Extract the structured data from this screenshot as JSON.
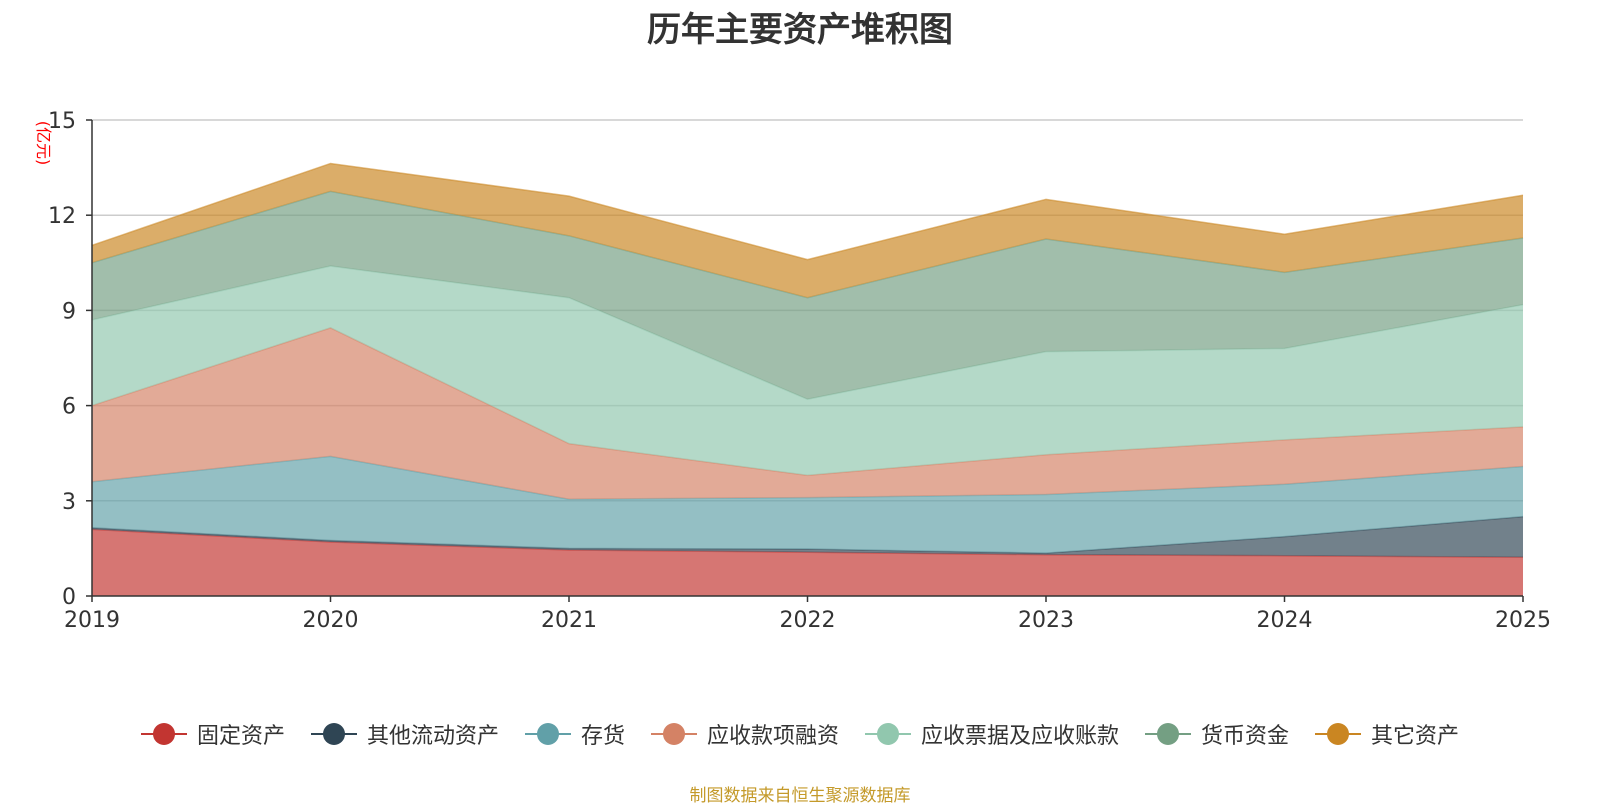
{
  "chart_data": {
    "type": "area",
    "stacked": true,
    "title": "历年主要资产堆积图",
    "ylabel": "(亿元)",
    "xlabel": "",
    "ylim": [
      0,
      15
    ],
    "yticks": [
      0,
      3,
      6,
      9,
      12,
      15
    ],
    "categories": [
      "2019",
      "2020",
      "2021",
      "2022",
      "2023",
      "2024",
      "2025"
    ],
    "grid": true,
    "legend_position": "bottom",
    "series": [
      {
        "name": "固定资产",
        "color": "#c23531",
        "values": [
          2.1,
          1.7,
          1.45,
          1.38,
          1.3,
          1.27,
          1.22
        ]
      },
      {
        "name": "其他流动资产",
        "color": "#2f4554",
        "values": [
          0.05,
          0.05,
          0.05,
          0.1,
          0.05,
          0.6,
          1.28
        ]
      },
      {
        "name": "存货",
        "color": "#61a0a8",
        "values": [
          1.45,
          2.65,
          1.55,
          1.62,
          1.85,
          1.65,
          1.58
        ]
      },
      {
        "name": "应收款项融资",
        "color": "#d48265",
        "values": [
          2.4,
          4.05,
          1.75,
          0.7,
          1.25,
          1.4,
          1.25
        ]
      },
      {
        "name": "应收票据及应收账款",
        "color": "#91c7ae",
        "values": [
          2.7,
          1.95,
          4.6,
          2.4,
          3.25,
          2.88,
          3.85
        ]
      },
      {
        "name": "货币资金",
        "color": "#749f83",
        "values": [
          1.8,
          2.35,
          1.95,
          3.2,
          3.55,
          2.4,
          2.1
        ]
      },
      {
        "name": "其它资产",
        "color": "#ca8622",
        "values": [
          0.55,
          0.88,
          1.25,
          1.2,
          1.25,
          1.2,
          1.35
        ]
      }
    ]
  },
  "unit_color": "#ff0000",
  "source_text": "制图数据来自恒生聚源数据库",
  "source_color": "#c49a2a"
}
